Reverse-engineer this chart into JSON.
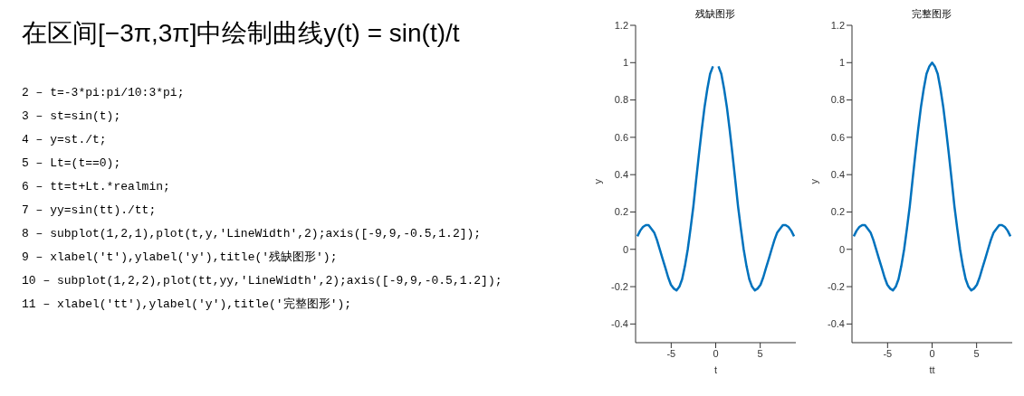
{
  "chart_data": [
    {
      "type": "other",
      "title": "在区间[−3π,3π]中绘制曲线y(t) = sin(t)/t",
      "annotations": [
        "2 – t=-3*pi:pi/10:3*pi;",
        "3 – st=sin(t);",
        "4 – y=st./t;",
        "5 – Lt=(t==0);",
        "6 – tt=t+Lt.*realmin;",
        "7 – yy=sin(tt)./tt;",
        "8 – subplot(1,2,1),plot(t,y,'LineWidth',2);axis([-9,9,-0.5,1.2]);",
        "9 – xlabel('t'),ylabel('y'),title('残缺图形');",
        "10 – subplot(1,2,2),plot(tt,yy,'LineWidth',2);axis([-9,9,-0.5,1.2]);",
        "11 – xlabel('tt'),ylabel('y'),title('完整图形');"
      ]
    },
    {
      "type": "line",
      "title": "残缺图形",
      "xlabel": "t",
      "ylabel": "y",
      "color": "#0072bd",
      "xlim": [
        -9,
        9
      ],
      "ylim": [
        -0.5,
        1.2
      ],
      "xticks": [
        -5,
        0,
        5
      ],
      "yticks": [
        -0.4,
        -0.2,
        0,
        0.2,
        0.4,
        0.6,
        0.8,
        1,
        1.2
      ],
      "x": [
        -8.8,
        -8.48,
        -8.17,
        -7.85,
        -7.54,
        -7.23,
        -6.91,
        -6.6,
        -6.28,
        -5.97,
        -5.65,
        -5.34,
        -5.03,
        -4.71,
        -4.4,
        -4.08,
        -3.77,
        -3.46,
        -3.14,
        -2.83,
        -2.51,
        -2.2,
        -1.88,
        -1.57,
        -1.26,
        -0.94,
        -0.63,
        -0.31,
        0,
        0.31,
        0.63,
        0.94,
        1.26,
        1.57,
        1.88,
        2.2,
        2.51,
        2.83,
        3.14,
        3.46,
        3.77,
        4.08,
        4.4,
        4.71,
        5.03,
        5.34,
        5.65,
        5.97,
        6.28,
        6.6,
        6.91,
        7.23,
        7.54,
        7.85,
        8.17,
        8.48,
        8.8
      ],
      "values": [
        0.07,
        0.1,
        0.12,
        0.13,
        0.13,
        0.11,
        0.09,
        0.05,
        0,
        -0.05,
        -0.1,
        -0.15,
        -0.19,
        -0.21,
        -0.22,
        -0.2,
        -0.16,
        -0.09,
        0,
        0.11,
        0.23,
        0.37,
        0.51,
        0.64,
        0.76,
        0.86,
        0.94,
        0.98,
        null,
        0.98,
        0.94,
        0.86,
        0.76,
        0.64,
        0.51,
        0.37,
        0.23,
        0.11,
        0,
        -0.09,
        -0.16,
        -0.2,
        -0.22,
        -0.21,
        -0.19,
        -0.15,
        -0.1,
        -0.05,
        0,
        0.05,
        0.09,
        0.11,
        0.13,
        0.13,
        0.12,
        0.1,
        0.07
      ]
    },
    {
      "type": "line",
      "title": "完整图形",
      "xlabel": "tt",
      "ylabel": "y",
      "color": "#0072bd",
      "xlim": [
        -9,
        9
      ],
      "ylim": [
        -0.5,
        1.2
      ],
      "xticks": [
        -5,
        0,
        5
      ],
      "yticks": [
        -0.4,
        -0.2,
        0,
        0.2,
        0.4,
        0.6,
        0.8,
        1,
        1.2
      ],
      "x": [
        -8.8,
        -8.48,
        -8.17,
        -7.85,
        -7.54,
        -7.23,
        -6.91,
        -6.6,
        -6.28,
        -5.97,
        -5.65,
        -5.34,
        -5.03,
        -4.71,
        -4.4,
        -4.08,
        -3.77,
        -3.46,
        -3.14,
        -2.83,
        -2.51,
        -2.2,
        -1.88,
        -1.57,
        -1.26,
        -0.94,
        -0.63,
        -0.31,
        0,
        0.31,
        0.63,
        0.94,
        1.26,
        1.57,
        1.88,
        2.2,
        2.51,
        2.83,
        3.14,
        3.46,
        3.77,
        4.08,
        4.4,
        4.71,
        5.03,
        5.34,
        5.65,
        5.97,
        6.28,
        6.6,
        6.91,
        7.23,
        7.54,
        7.85,
        8.17,
        8.48,
        8.8
      ],
      "values": [
        0.07,
        0.1,
        0.12,
        0.13,
        0.13,
        0.11,
        0.09,
        0.05,
        0,
        -0.05,
        -0.1,
        -0.15,
        -0.19,
        -0.21,
        -0.22,
        -0.2,
        -0.16,
        -0.09,
        0,
        0.11,
        0.23,
        0.37,
        0.51,
        0.64,
        0.76,
        0.86,
        0.94,
        0.98,
        1,
        0.98,
        0.94,
        0.86,
        0.76,
        0.64,
        0.51,
        0.37,
        0.23,
        0.11,
        0,
        -0.09,
        -0.16,
        -0.2,
        -0.22,
        -0.21,
        -0.19,
        -0.15,
        -0.1,
        -0.05,
        0,
        0.05,
        0.09,
        0.11,
        0.13,
        0.13,
        0.12,
        0.1,
        0.07
      ]
    }
  ]
}
